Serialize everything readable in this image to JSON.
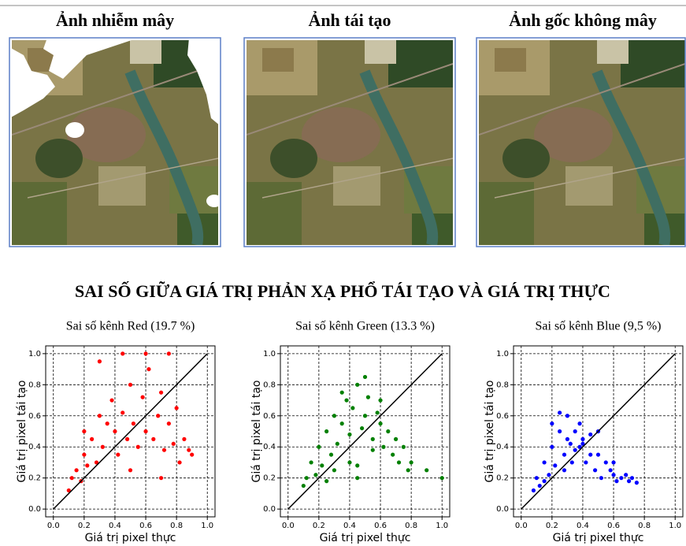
{
  "images": [
    {
      "title": "Ảnh nhiễm mây"
    },
    {
      "title": "Ảnh tái tạo"
    },
    {
      "title": "Ảnh gốc không mây"
    }
  ],
  "heading": "SAI SỐ GIỮA GIÁ TRỊ PHẢN XẠ PHỔ TÁI TẠO VÀ GIÁ TRỊ THỰC",
  "chart_data": [
    {
      "type": "scatter",
      "title": "Sai số kênh Red (19.7 %)",
      "x_label": "Giá trị pixel thực",
      "y_label": "Giá trị pixel tái tạo",
      "color": "#ff0000",
      "x": [
        0.1,
        0.12,
        0.15,
        0.18,
        0.2,
        0.22,
        0.25,
        0.28,
        0.3,
        0.32,
        0.35,
        0.38,
        0.4,
        0.42,
        0.45,
        0.48,
        0.5,
        0.52,
        0.55,
        0.58,
        0.6,
        0.62,
        0.65,
        0.68,
        0.7,
        0.72,
        0.75,
        0.78,
        0.8,
        0.82,
        0.85,
        0.88,
        0.3,
        0.45,
        0.6,
        0.75,
        0.2,
        0.5,
        0.7,
        0.9
      ],
      "y": [
        0.12,
        0.2,
        0.25,
        0.18,
        0.35,
        0.28,
        0.45,
        0.3,
        0.6,
        0.4,
        0.55,
        0.7,
        0.5,
        0.35,
        0.62,
        0.45,
        0.8,
        0.55,
        0.4,
        0.72,
        0.5,
        0.9,
        0.45,
        0.6,
        0.75,
        0.38,
        0.55,
        0.42,
        0.65,
        0.3,
        0.45,
        0.38,
        0.95,
        1.0,
        1.0,
        1.0,
        0.5,
        0.25,
        0.2,
        0.35
      ],
      "xlim": [
        -0.05,
        1.05
      ],
      "ylim": [
        -0.05,
        1.05
      ],
      "xticks": [
        {
          "value": 0,
          "label": "0.0"
        },
        0.2,
        0.4,
        0.6,
        0.8,
        {
          "value": 1,
          "label": "1.0"
        }
      ],
      "yticks": [
        {
          "value": 0,
          "label": "0.0"
        },
        0.2,
        0.4,
        0.6,
        0.8,
        {
          "value": 1,
          "label": "1.0"
        }
      ],
      "grid": true
    },
    {
      "type": "scatter",
      "title": "Sai số kênh Green (13.3 %)",
      "x_label": "Giá trị pixel thực",
      "y_label": "Giá trị pixel tái tạo",
      "color": "#008000",
      "x": [
        0.1,
        0.12,
        0.15,
        0.18,
        0.2,
        0.22,
        0.25,
        0.28,
        0.3,
        0.32,
        0.35,
        0.38,
        0.4,
        0.42,
        0.45,
        0.48,
        0.5,
        0.52,
        0.55,
        0.58,
        0.6,
        0.62,
        0.65,
        0.68,
        0.7,
        0.72,
        0.75,
        0.78,
        0.8,
        0.3,
        0.4,
        0.45,
        0.5,
        0.55,
        0.35,
        0.6,
        0.25,
        0.45,
        1.0,
        0.9
      ],
      "y": [
        0.15,
        0.2,
        0.3,
        0.22,
        0.4,
        0.28,
        0.5,
        0.35,
        0.6,
        0.42,
        0.55,
        0.7,
        0.48,
        0.65,
        0.8,
        0.52,
        0.6,
        0.72,
        0.45,
        0.62,
        0.55,
        0.4,
        0.5,
        0.35,
        0.45,
        0.3,
        0.4,
        0.25,
        0.3,
        0.25,
        0.3,
        0.2,
        0.85,
        0.38,
        0.75,
        0.7,
        0.18,
        0.28,
        0.2,
        0.25
      ],
      "xlim": [
        -0.05,
        1.05
      ],
      "ylim": [
        -0.05,
        1.05
      ],
      "xticks": [
        {
          "value": 0,
          "label": "0.0"
        },
        0.2,
        0.4,
        0.6,
        0.8,
        {
          "value": 1,
          "label": "1.0"
        }
      ],
      "yticks": [
        {
          "value": 0,
          "label": "0.0"
        },
        0.2,
        0.4,
        0.6,
        0.8,
        {
          "value": 1,
          "label": "1.0"
        }
      ],
      "grid": true
    },
    {
      "type": "scatter",
      "title": "Sai số kênh Blue (9,5 %)",
      "x_label": "Giá trị pixel thực",
      "y_label": "Giá trị pixel tái tạo",
      "color": "#0000ff",
      "x": [
        0.08,
        0.1,
        0.12,
        0.15,
        0.18,
        0.2,
        0.22,
        0.25,
        0.28,
        0.3,
        0.32,
        0.35,
        0.38,
        0.4,
        0.42,
        0.45,
        0.48,
        0.5,
        0.52,
        0.55,
        0.58,
        0.6,
        0.62,
        0.65,
        0.68,
        0.7,
        0.72,
        0.75,
        0.2,
        0.25,
        0.3,
        0.35,
        0.4,
        0.45,
        0.15,
        0.28,
        0.33,
        0.38,
        0.5,
        0.6
      ],
      "y": [
        0.12,
        0.2,
        0.15,
        0.3,
        0.22,
        0.4,
        0.28,
        0.5,
        0.35,
        0.6,
        0.42,
        0.38,
        0.55,
        0.45,
        0.3,
        0.48,
        0.25,
        0.35,
        0.2,
        0.3,
        0.25,
        0.22,
        0.18,
        0.2,
        0.22,
        0.18,
        0.2,
        0.17,
        0.55,
        0.62,
        0.45,
        0.5,
        0.42,
        0.35,
        0.18,
        0.25,
        0.3,
        0.4,
        0.5,
        0.3
      ],
      "xlim": [
        -0.05,
        1.05
      ],
      "ylim": [
        -0.05,
        1.05
      ],
      "xticks": [
        {
          "value": 0,
          "label": "0.0"
        },
        0.2,
        0.4,
        0.6,
        0.8,
        {
          "value": 1,
          "label": "1.0"
        }
      ],
      "yticks": [
        {
          "value": 0,
          "label": "0.0"
        },
        0.2,
        0.4,
        0.6,
        0.8,
        {
          "value": 1,
          "label": "1.0"
        }
      ],
      "grid": true
    }
  ]
}
